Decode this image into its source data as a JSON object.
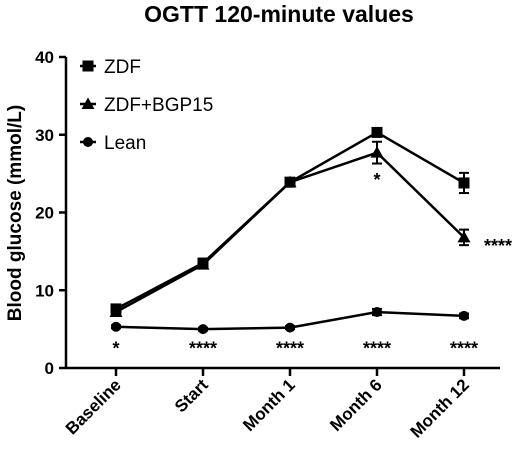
{
  "chart_data": {
    "type": "line",
    "title": "OGTT 120-minute values",
    "ylabel": "Blood glucose (mmol/L)",
    "xlabel": "",
    "ylim": [
      0,
      40
    ],
    "yticks": [
      0,
      10,
      20,
      30,
      40
    ],
    "categories": [
      "Baseline",
      "Start",
      "Month 1",
      "Month 6",
      "Month 12"
    ],
    "legend_position": "top-left",
    "grid": false,
    "series": [
      {
        "name": "ZDF",
        "marker": "square",
        "values": [
          7.6,
          13.5,
          23.9,
          30.3,
          23.8
        ],
        "errors": [
          0.4,
          0.4,
          0.4,
          0.5,
          1.3
        ]
      },
      {
        "name": "ZDF+BGP15",
        "marker": "triangle",
        "values": [
          7.2,
          13.3,
          23.9,
          27.7,
          16.8
        ],
        "errors": [
          0.3,
          0.3,
          0.4,
          1.4,
          1.0
        ]
      },
      {
        "name": "Lean",
        "marker": "circle",
        "values": [
          5.3,
          5.0,
          5.2,
          7.2,
          6.7
        ],
        "errors": [
          0.2,
          0.2,
          0.2,
          0.4,
          0.3
        ]
      }
    ],
    "annotations": [
      {
        "category": "Baseline",
        "y": 3.0,
        "text": "*"
      },
      {
        "category": "Start",
        "y": 3.0,
        "text": "****"
      },
      {
        "category": "Month 1",
        "y": 3.0,
        "text": "****"
      },
      {
        "category": "Month 6",
        "y": 3.0,
        "text": "****"
      },
      {
        "category": "Month 12",
        "y": 3.0,
        "text": "****"
      },
      {
        "category": "Month 6",
        "y": 24.7,
        "text": "*"
      },
      {
        "category": "Month 12",
        "y": 16.2,
        "text": "****",
        "side": "right"
      }
    ]
  }
}
